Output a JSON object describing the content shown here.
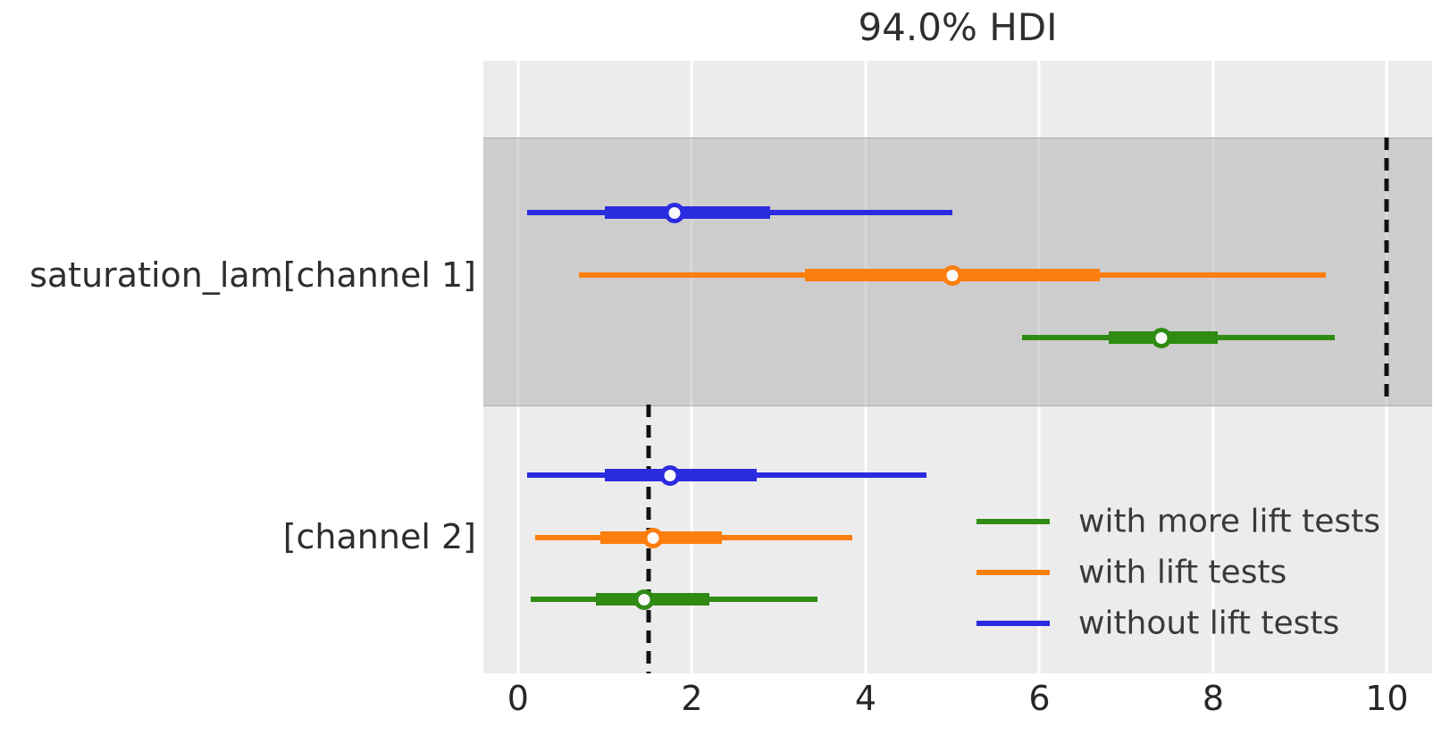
{
  "title": "94.0% HDI",
  "colors": {
    "green_series": "#2f8b14",
    "orange_series": "#fc7e0e",
    "blue_series": "#2b2bdf",
    "reference_line": "#111111",
    "plot_background": "#ececec",
    "shaded_band": "#d4d4d4",
    "gridline": "#ffffff",
    "text": "#2e2e2e"
  },
  "chart_data": {
    "type": "forest",
    "title": "94.0% HDI",
    "hdi_probability": "94.0%",
    "xlim": [
      -0.4,
      10.52
    ],
    "x_ticks": [
      0,
      2,
      4,
      6,
      8,
      10
    ],
    "grid": "on",
    "legend_position": "lower right",
    "legend": [
      {
        "label": "with more lift tests",
        "color": "#2f8b14"
      },
      {
        "label": "with lift tests",
        "color": "#fc7e0e"
      },
      {
        "label": "without lift tests",
        "color": "#2b2bdf"
      }
    ],
    "groups": [
      {
        "label": "saturation_lam[channel 1]",
        "shaded": true,
        "reference_value": 10.0,
        "rows": [
          {
            "series": "without lift tests",
            "color": "#2b2bdf",
            "hdi_94": [
              0.1,
              5.0
            ],
            "hdi_50": [
              1.0,
              2.9
            ],
            "median": 1.8
          },
          {
            "series": "with lift tests",
            "color": "#fc7e0e",
            "hdi_94": [
              0.7,
              9.3
            ],
            "hdi_50": [
              3.3,
              6.7
            ],
            "median": 5.0
          },
          {
            "series": "with more lift tests",
            "color": "#2f8b14",
            "hdi_94": [
              5.8,
              9.4
            ],
            "hdi_50": [
              6.8,
              8.05
            ],
            "median": 7.4
          }
        ]
      },
      {
        "label": "[channel 2]",
        "shaded": false,
        "reference_value": 1.5,
        "rows": [
          {
            "series": "without lift tests",
            "color": "#2b2bdf",
            "hdi_94": [
              0.1,
              4.7
            ],
            "hdi_50": [
              1.0,
              2.75
            ],
            "median": 1.75
          },
          {
            "series": "with lift tests",
            "color": "#fc7e0e",
            "hdi_94": [
              0.2,
              3.85
            ],
            "hdi_50": [
              0.95,
              2.35
            ],
            "median": 1.55
          },
          {
            "series": "with more lift tests",
            "color": "#2f8b14",
            "hdi_94": [
              0.15,
              3.45
            ],
            "hdi_50": [
              0.9,
              2.2
            ],
            "median": 1.45
          }
        ]
      }
    ]
  }
}
